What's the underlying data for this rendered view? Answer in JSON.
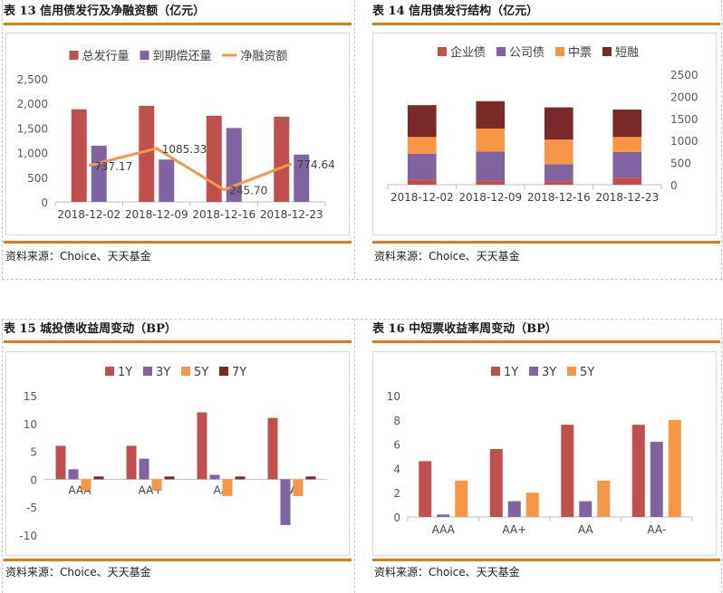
{
  "source_text": "资料来源：Choice、天天基金",
  "chart_data": [
    {
      "id": "c13",
      "type": "bar",
      "title": "表 13  信用债发行及净融资额（亿元）",
      "categories": [
        "2018-12-02",
        "2018-12-09",
        "2018-12-16",
        "2018-12-23"
      ],
      "series": [
        {
          "name": "总发行量",
          "type": "bar",
          "color": "#c0504d",
          "values": [
            1880,
            1950,
            1750,
            1730
          ]
        },
        {
          "name": "到期偿还量",
          "type": "bar",
          "color": "#8064a2",
          "values": [
            1140,
            860,
            1500,
            960
          ]
        },
        {
          "name": "净融资额",
          "type": "line",
          "color": "#f79646",
          "values": [
            737.17,
            1085.33,
            245.7,
            774.64
          ]
        }
      ],
      "data_labels": [
        "737.17",
        "1085.33",
        "245.70",
        "774.64"
      ],
      "ylim": [
        0,
        2500
      ],
      "yticks": [
        0,
        500,
        1000,
        1500,
        2000,
        2500
      ],
      "ytick_labels": [
        "0",
        "500",
        "1,000",
        "1,500",
        "2,000",
        "2,500"
      ],
      "legend_position": "top"
    },
    {
      "id": "c14",
      "type": "bar",
      "stacked": true,
      "title": "表 14  信用债发行结构（亿元）",
      "categories": [
        "2018-12-02",
        "2018-12-09",
        "2018-12-16",
        "2018-12-23"
      ],
      "series": [
        {
          "name": "企业债",
          "color": "#c0504d",
          "values": [
            120,
            90,
            80,
            160
          ]
        },
        {
          "name": "公司债",
          "color": "#8064a2",
          "values": [
            580,
            660,
            380,
            580
          ]
        },
        {
          "name": "中票",
          "color": "#f79646",
          "values": [
            380,
            520,
            560,
            340
          ]
        },
        {
          "name": "短融",
          "color": "#7b2a2a",
          "values": [
            720,
            620,
            730,
            620
          ]
        }
      ],
      "ylim": [
        0,
        2500
      ],
      "yticks": [
        0,
        500,
        1000,
        1500,
        2000,
        2500
      ],
      "ytick_labels": [
        "0",
        "500",
        "1000",
        "1500",
        "2000",
        "2500"
      ],
      "y_axis_side": "right",
      "legend_position": "top"
    },
    {
      "id": "c15",
      "type": "bar",
      "title": "表 15  城投债收益周变动（BP）",
      "categories": [
        "AAA",
        "AA+",
        "AA",
        "AA-"
      ],
      "series": [
        {
          "name": "1Y",
          "color": "#c0504d",
          "values": [
            6,
            6,
            12,
            11
          ]
        },
        {
          "name": "3Y",
          "color": "#8064a2",
          "values": [
            1.8,
            3.7,
            0.8,
            -8.2
          ]
        },
        {
          "name": "5Y",
          "color": "#f79646",
          "values": [
            -2,
            -2,
            -3,
            -3
          ]
        },
        {
          "name": "7Y",
          "color": "#7b2a2a",
          "values": [
            0.5,
            0.5,
            0.5,
            0.5
          ]
        }
      ],
      "ylim": [
        -10,
        15
      ],
      "yticks": [
        -10,
        -5,
        0,
        5,
        10,
        15
      ],
      "ytick_labels": [
        "-10",
        "-5",
        "0",
        "5",
        "10",
        "15"
      ],
      "legend_position": "top"
    },
    {
      "id": "c16",
      "type": "bar",
      "title": "表 16  中短票收益率周变动（BP）",
      "categories": [
        "AAA",
        "AA+",
        "AA",
        "AA-"
      ],
      "series": [
        {
          "name": "1Y",
          "color": "#c0504d",
          "values": [
            4.6,
            5.6,
            7.6,
            7.6
          ]
        },
        {
          "name": "3Y",
          "color": "#8064a2",
          "values": [
            0.2,
            1.3,
            1.3,
            6.2
          ]
        },
        {
          "name": "5Y",
          "color": "#f79646",
          "values": [
            3.0,
            2.0,
            3.0,
            8.0
          ]
        }
      ],
      "ylim": [
        0,
        10
      ],
      "yticks": [
        0,
        2,
        4,
        6,
        8,
        10
      ],
      "ytick_labels": [
        "0",
        "2",
        "4",
        "6",
        "8",
        "10"
      ],
      "legend_position": "top"
    }
  ]
}
